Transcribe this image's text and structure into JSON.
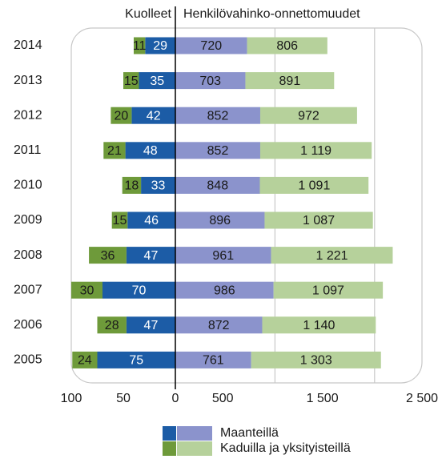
{
  "chart_data": {
    "type": "butterfly",
    "left_title": "Kuolleet",
    "right_title": "Henkilövahinko-onnettomuudet",
    "categories": [
      "2014",
      "2013",
      "2012",
      "2011",
      "2010",
      "2009",
      "2008",
      "2007",
      "2006",
      "2005"
    ],
    "series": [
      {
        "name": "Maanteillä",
        "colors": [
          "#1c5ca6",
          "#8b93cc"
        ],
        "values_left": [
          29,
          35,
          42,
          48,
          33,
          46,
          47,
          70,
          47,
          75
        ],
        "values_right": [
          720,
          703,
          852,
          852,
          848,
          896,
          961,
          986,
          872,
          761
        ]
      },
      {
        "name": "Kaduilla ja yksityisteillä",
        "colors": [
          "#6e9a3a",
          "#b6d19b"
        ],
        "values_left": [
          11,
          15,
          20,
          21,
          18,
          15,
          36,
          30,
          28,
          24
        ],
        "values_right": [
          806,
          891,
          972,
          1119,
          1091,
          1087,
          1221,
          1097,
          1140,
          1303
        ],
        "value_labels_right": [
          "806",
          "891",
          "972",
          "1 119",
          "1 091",
          "1 087",
          "1 221",
          "1 097",
          "1 140",
          "1 303"
        ]
      }
    ],
    "xlim_left": [
      100,
      0
    ],
    "xticks_left": [
      100,
      50,
      0
    ],
    "xlim_right": [
      0,
      2500
    ],
    "xticks_right": [
      0,
      500,
      {
        "value": 1500,
        "label": "1 500"
      },
      {
        "value": 2500,
        "label": "2 500"
      }
    ],
    "xgrid_right": [
      1000,
      2000
    ]
  }
}
